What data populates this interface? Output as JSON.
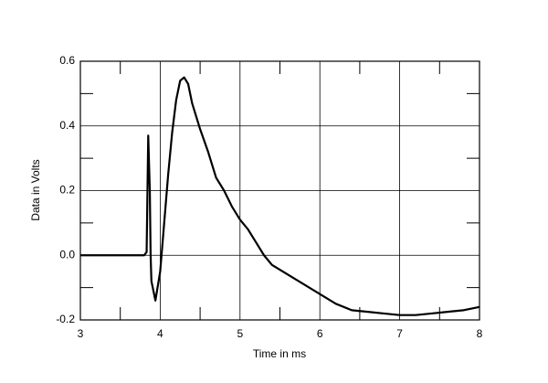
{
  "chart_data": {
    "type": "line",
    "x_label": "Time in ms",
    "y_label": "Data in Volts",
    "xlim": [
      3,
      8
    ],
    "ylim": [
      -0.2,
      0.6
    ],
    "xticks": [
      3,
      4,
      5,
      6,
      7,
      8
    ],
    "yticks": [
      -0.2,
      {
        "value": 0,
        "label": "0.0"
      },
      0.2,
      0.4,
      0.6
    ],
    "x_minor_ticks": [
      3.5,
      4.5,
      5.5,
      6.5,
      7.5
    ],
    "y_minor_ticks": [
      -0.1,
      0.1,
      0.3,
      0.5
    ],
    "grid": true,
    "series": [
      {
        "color": "#000000",
        "x": [
          3.0,
          3.5,
          3.8,
          3.83,
          3.85,
          3.87,
          3.88,
          3.89,
          3.94,
          4.0,
          4.05,
          4.1,
          4.15,
          4.2,
          4.25,
          4.3,
          4.35,
          4.4,
          4.5,
          4.6,
          4.7,
          4.8,
          4.9,
          5.0,
          5.1,
          5.2,
          5.3,
          5.4,
          5.6,
          5.8,
          6.0,
          6.2,
          6.4,
          6.6,
          6.8,
          7.0,
          7.2,
          7.4,
          7.6,
          7.8,
          8.0
        ],
        "values": [
          0.0,
          0.0,
          0.0,
          0.01,
          0.37,
          0.2,
          0.0,
          -0.08,
          -0.14,
          -0.05,
          0.1,
          0.25,
          0.38,
          0.48,
          0.54,
          0.55,
          0.53,
          0.47,
          0.39,
          0.32,
          0.24,
          0.2,
          0.15,
          0.11,
          0.08,
          0.04,
          0.0,
          -0.03,
          -0.06,
          -0.09,
          -0.12,
          -0.15,
          -0.17,
          -0.175,
          -0.18,
          -0.185,
          -0.185,
          -0.18,
          -0.175,
          -0.17,
          -0.16
        ]
      }
    ]
  }
}
